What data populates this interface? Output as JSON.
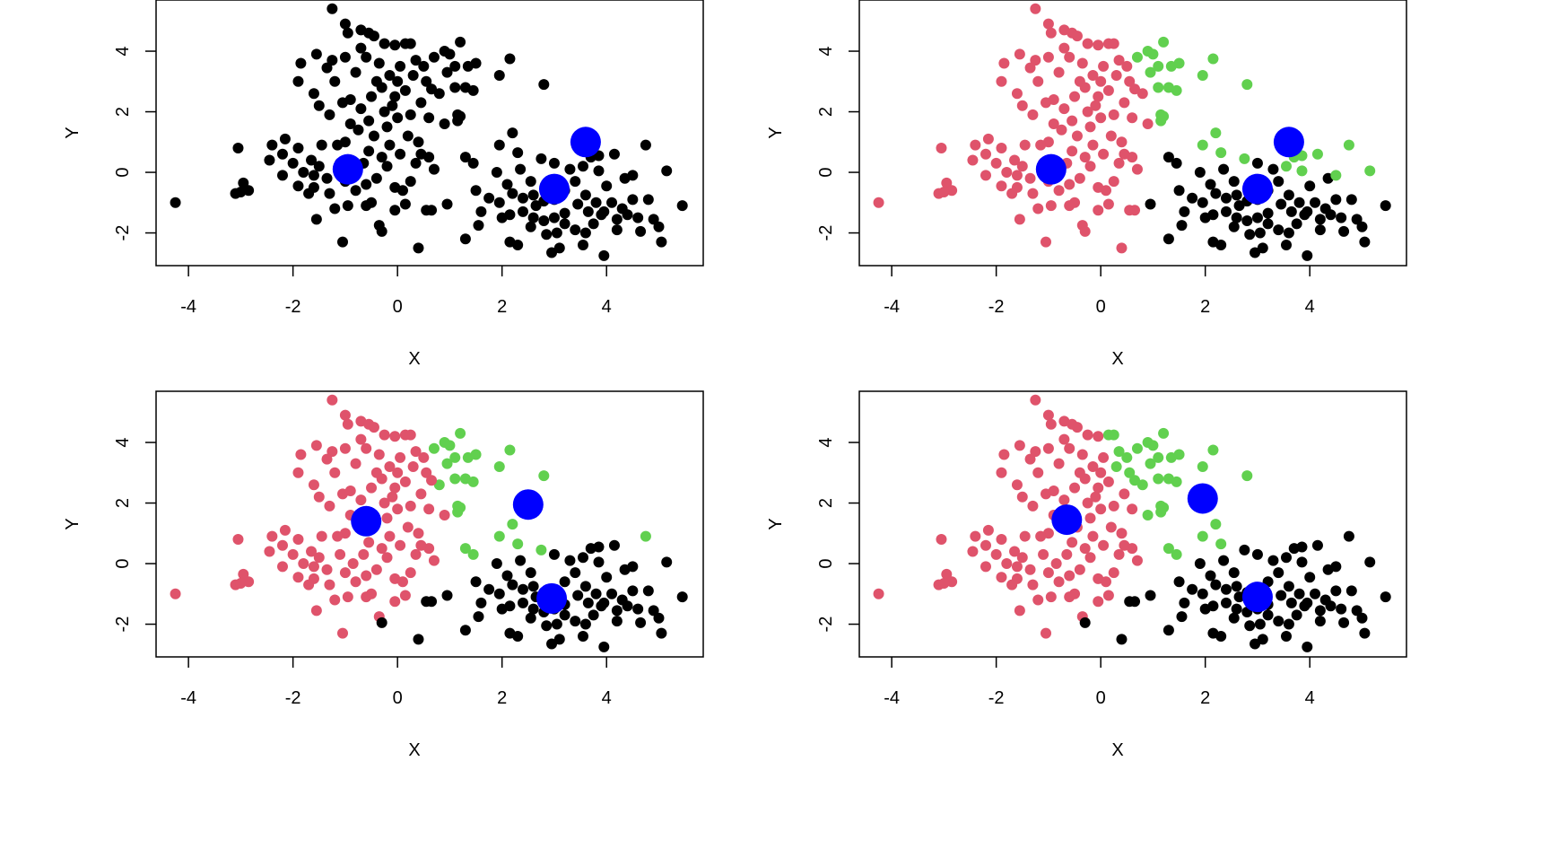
{
  "chart_data": {
    "type": "scatter",
    "title": "",
    "colors": {
      "cluster_1": "#DF536B",
      "cluster_2": "#61D04F",
      "cluster_3": "#000000",
      "unassigned": "#000000",
      "center": "#0000FF"
    },
    "points": [
      [
        -1.0,
        4.9
      ],
      [
        -0.95,
        4.6
      ],
      [
        -0.7,
        4.7
      ],
      [
        -0.55,
        4.6
      ],
      [
        -0.45,
        4.5
      ],
      [
        -0.25,
        4.25
      ],
      [
        -0.05,
        4.2
      ],
      [
        0.15,
        4.25
      ],
      [
        0.25,
        4.25
      ],
      [
        -1.25,
        3.7
      ],
      [
        -1.55,
        3.9
      ],
      [
        -1.85,
        3.6
      ],
      [
        -1.9,
        3.0
      ],
      [
        -1.6,
        2.6
      ],
      [
        -1.5,
        2.2
      ],
      [
        -1.3,
        1.9
      ],
      [
        -1.05,
        2.3
      ],
      [
        -0.9,
        2.4
      ],
      [
        -0.7,
        2.1
      ],
      [
        -0.5,
        2.5
      ],
      [
        -0.3,
        2.8
      ],
      [
        0.0,
        3.0
      ],
      [
        0.15,
        2.7
      ],
      [
        0.3,
        3.2
      ],
      [
        0.5,
        3.5
      ],
      [
        0.7,
        3.8
      ],
      [
        0.9,
        4.0
      ],
      [
        0.55,
        3.0
      ],
      [
        0.8,
        2.6
      ],
      [
        0.95,
        3.3
      ],
      [
        1.1,
        3.5
      ],
      [
        0.45,
        2.3
      ],
      [
        0.25,
        1.9
      ],
      [
        0.6,
        1.8
      ],
      [
        0.9,
        1.6
      ],
      [
        1.15,
        1.9
      ],
      [
        1.1,
        2.8
      ],
      [
        -0.8,
        3.3
      ],
      [
        -0.6,
        3.8
      ],
      [
        -0.35,
        3.6
      ],
      [
        -0.15,
        3.2
      ],
      [
        -0.05,
        2.5
      ],
      [
        -0.25,
        2.0
      ],
      [
        -0.55,
        1.7
      ],
      [
        -0.75,
        1.4
      ],
      [
        -1.0,
        1.0
      ],
      [
        -1.15,
        0.9
      ],
      [
        -1.45,
        0.9
      ],
      [
        -1.65,
        0.4
      ],
      [
        -1.8,
        0.0
      ],
      [
        -2.0,
        0.3
      ],
      [
        -2.2,
        0.6
      ],
      [
        -2.4,
        0.9
      ],
      [
        -2.15,
        1.1
      ],
      [
        -2.45,
        0.4
      ],
      [
        -2.2,
        -0.1
      ],
      [
        -1.9,
        -0.45
      ],
      [
        -1.6,
        -0.5
      ],
      [
        -1.7,
        -0.7
      ],
      [
        -1.35,
        -0.2
      ],
      [
        -1.3,
        -0.7
      ],
      [
        -1.2,
        -1.2
      ],
      [
        -1.55,
        -1.55
      ],
      [
        -0.95,
        -1.1
      ],
      [
        -0.8,
        -0.6
      ],
      [
        -0.6,
        -0.4
      ],
      [
        -0.5,
        -1.0
      ],
      [
        -0.6,
        -1.1
      ],
      [
        -0.35,
        -1.75
      ],
      [
        -0.3,
        -1.95
      ],
      [
        -0.4,
        -0.2
      ],
      [
        -0.2,
        0.2
      ],
      [
        -0.05,
        -0.5
      ],
      [
        0.1,
        -0.6
      ],
      [
        0.25,
        -0.3
      ],
      [
        0.35,
        0.3
      ],
      [
        0.05,
        0.6
      ],
      [
        -0.15,
        0.9
      ],
      [
        0.2,
        1.2
      ],
      [
        0.4,
        1.0
      ],
      [
        0.6,
        0.5
      ],
      [
        0.7,
        0.1
      ],
      [
        0.55,
        -1.25
      ],
      [
        0.65,
        -1.25
      ],
      [
        0.95,
        -1.05
      ],
      [
        0.15,
        -1.05
      ],
      [
        -0.65,
        0.3
      ],
      [
        -0.85,
        0.0
      ],
      [
        -1.5,
        0.2
      ],
      [
        -1.0,
        -0.3
      ],
      [
        -0.2,
        1.5
      ],
      [
        0.0,
        1.8
      ],
      [
        -0.45,
        1.2
      ],
      [
        -0.1,
        2.2
      ],
      [
        -1.9,
        0.8
      ],
      [
        -1.0,
        3.8
      ],
      [
        -0.7,
        4.1
      ],
      [
        -0.4,
        3.0
      ],
      [
        0.35,
        3.7
      ],
      [
        0.65,
        2.75
      ],
      [
        -1.2,
        3.0
      ],
      [
        -1.35,
        3.45
      ],
      [
        0.05,
        3.5
      ],
      [
        -0.9,
        1.6
      ],
      [
        -0.3,
        0.5
      ],
      [
        0.45,
        0.6
      ],
      [
        -1.6,
        -0.1
      ],
      [
        -1.1,
        0.3
      ],
      [
        -0.55,
        0.7
      ],
      [
        1.0,
        3.9
      ],
      [
        1.2,
        4.3
      ],
      [
        1.35,
        3.5
      ],
      [
        1.5,
        3.6
      ],
      [
        1.3,
        2.8
      ],
      [
        1.45,
        2.7
      ],
      [
        1.15,
        1.7
      ],
      [
        1.2,
        1.85
      ],
      [
        1.95,
        3.2
      ],
      [
        2.15,
        3.75
      ],
      [
        2.8,
        2.9
      ],
      [
        1.95,
        0.9
      ],
      [
        2.2,
        1.3
      ],
      [
        2.3,
        0.65
      ],
      [
        1.3,
        0.5
      ],
      [
        1.45,
        0.3
      ],
      [
        1.9,
        0.0
      ],
      [
        2.1,
        -0.4
      ],
      [
        2.2,
        -0.7
      ],
      [
        2.4,
        -0.85
      ],
      [
        2.6,
        -0.75
      ],
      [
        2.8,
        -0.95
      ],
      [
        3.0,
        -0.9
      ],
      [
        3.2,
        -0.6
      ],
      [
        3.4,
        -0.3
      ],
      [
        3.55,
        0.2
      ],
      [
        3.7,
        0.5
      ],
      [
        3.85,
        0.55
      ],
      [
        4.15,
        0.6
      ],
      [
        4.35,
        -0.2
      ],
      [
        4.5,
        -0.9
      ],
      [
        4.3,
        -1.2
      ],
      [
        4.1,
        -1.0
      ],
      [
        3.9,
        -1.4
      ],
      [
        3.65,
        -1.3
      ],
      [
        3.45,
        -1.05
      ],
      [
        3.2,
        -1.35
      ],
      [
        3.0,
        -1.5
      ],
      [
        2.8,
        -1.6
      ],
      [
        2.6,
        -1.5
      ],
      [
        2.4,
        -1.3
      ],
      [
        2.15,
        -1.4
      ],
      [
        1.95,
        -1.0
      ],
      [
        1.75,
        -0.85
      ],
      [
        1.5,
        -0.6
      ],
      [
        1.6,
        -1.3
      ],
      [
        1.55,
        -1.75
      ],
      [
        2.15,
        -2.3
      ],
      [
        2.3,
        -2.4
      ],
      [
        2.55,
        -1.8
      ],
      [
        2.85,
        -2.05
      ],
      [
        3.05,
        -2.0
      ],
      [
        3.2,
        -1.7
      ],
      [
        3.4,
        -1.9
      ],
      [
        3.6,
        -2.0
      ],
      [
        3.75,
        -1.7
      ],
      [
        3.95,
        -1.3
      ],
      [
        4.2,
        -1.55
      ],
      [
        4.6,
        -1.5
      ],
      [
        4.9,
        -1.55
      ],
      [
        5.0,
        -1.8
      ],
      [
        5.05,
        -2.3
      ],
      [
        3.95,
        -2.75
      ],
      [
        2.95,
        -2.65
      ],
      [
        1.3,
        -2.2
      ],
      [
        3.55,
        -2.4
      ],
      [
        4.0,
        -0.45
      ],
      [
        4.5,
        -0.1
      ],
      [
        4.8,
        -0.9
      ],
      [
        4.75,
        0.9
      ],
      [
        5.15,
        0.05
      ],
      [
        5.45,
        -1.1
      ],
      [
        3.3,
        0.1
      ],
      [
        2.75,
        0.45
      ],
      [
        2.55,
        -0.3
      ],
      [
        2.35,
        0.1
      ],
      [
        2.65,
        -1.1
      ],
      [
        3.6,
        -0.75
      ],
      [
        3.8,
        -1.0
      ],
      [
        4.4,
        -1.4
      ],
      [
        4.65,
        -1.95
      ],
      [
        4.2,
        -1.9
      ],
      [
        3.1,
        -2.5
      ],
      [
        2.0,
        -1.5
      ],
      [
        3.85,
        0.05
      ],
      [
        3.0,
        0.3
      ],
      [
        -4.25,
        -1.0
      ],
      [
        -3.05,
        0.8
      ],
      [
        -3.1,
        -0.7
      ],
      [
        -2.95,
        -0.35
      ],
      [
        -2.85,
        -0.6
      ],
      [
        -3.0,
        -0.65
      ],
      [
        -1.25,
        5.4
      ],
      [
        -1.05,
        -2.3
      ],
      [
        0.4,
        -2.5
      ],
      [
        -0.05,
        -1.25
      ]
    ],
    "panels": [
      {
        "name": "iteration-1",
        "colored": false,
        "centers": [
          [
            -0.95,
            0.1
          ],
          [
            3.6,
            1.0
          ],
          [
            3.0,
            -0.55
          ]
        ],
        "xlabel": "X",
        "ylabel": "Y"
      },
      {
        "name": "iteration-2",
        "colored": true,
        "centers": [
          [
            -0.95,
            0.1
          ],
          [
            3.6,
            1.0
          ],
          [
            3.0,
            -0.55
          ]
        ],
        "xlabel": "X",
        "ylabel": "Y"
      },
      {
        "name": "iteration-3",
        "colored": true,
        "centers": [
          [
            -0.6,
            1.4
          ],
          [
            2.5,
            1.95
          ],
          [
            2.95,
            -1.15
          ]
        ],
        "xlabel": "X",
        "ylabel": "Y"
      },
      {
        "name": "iteration-4",
        "colored": true,
        "centers": [
          [
            -0.65,
            1.45
          ],
          [
            1.95,
            2.15
          ],
          [
            3.0,
            -1.1
          ]
        ],
        "xlabel": "X",
        "ylabel": "Y"
      }
    ],
    "xlim": [
      -4.62,
      5.85
    ],
    "ylim": [
      -3.08,
      5.69
    ],
    "xticks": [
      -4,
      -2,
      0,
      2,
      4
    ],
    "xtick_labels": [
      "-4",
      "-2",
      "0",
      "2",
      "4"
    ],
    "yticks": [
      -2,
      0,
      2,
      4
    ],
    "ytick_labels": [
      "-2",
      "0",
      "2",
      "4"
    ],
    "grid": false,
    "legend": "none"
  }
}
